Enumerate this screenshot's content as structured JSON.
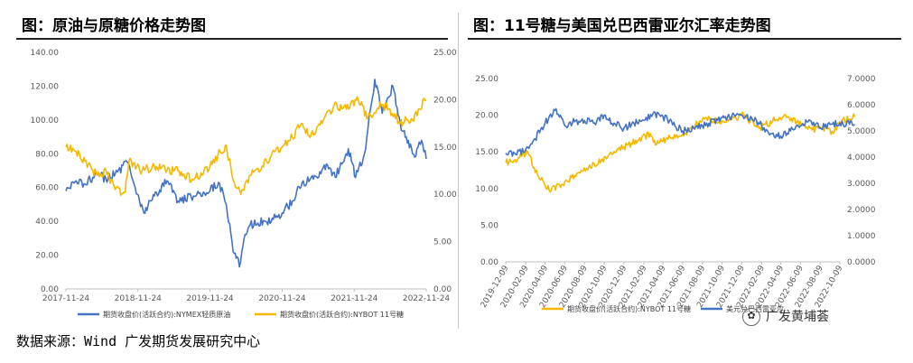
{
  "header_left": "图：原油与原糖价格走势图",
  "header_right": "图：11号糖与美国兑巴西雷亚尔汇率走势图",
  "source": "数据来源：Wind 广发期货发展研究中心",
  "watermark": "广发黄埔荟",
  "colors": {
    "blue": "#4472c4",
    "gold": "#f5b800"
  },
  "chart_data": [
    {
      "type": "line",
      "title": "",
      "x_ticks": [
        "2017-11-24",
        "2018-11-24",
        "2019-11-24",
        "2020-11-24",
        "2021-11-24",
        "2022-11-24"
      ],
      "y_left": {
        "ticks": [
          "0.00",
          "20.00",
          "40.00",
          "60.00",
          "80.00",
          "100.00",
          "120.00",
          "140.00"
        ],
        "range": [
          0,
          140
        ]
      },
      "y_right": {
        "ticks": [
          "0.00",
          "5.00",
          "10.00",
          "15.00",
          "20.00",
          "25.00"
        ],
        "range": [
          0,
          25
        ]
      },
      "series": [
        {
          "name": "期货收盘价(活跃合约):NYMEX轻质原油",
          "axis": "left",
          "x": [
            "2017-11-24",
            "2018-01-15",
            "2018-03-01",
            "2018-05-01",
            "2018-06-15",
            "2018-08-01",
            "2018-10-01",
            "2018-11-10",
            "2018-12-24",
            "2019-02-15",
            "2019-04-20",
            "2019-06-15",
            "2019-09-01",
            "2019-11-24",
            "2020-01-06",
            "2020-02-15",
            "2020-03-20",
            "2020-04-10",
            "2020-04-21",
            "2020-05-15",
            "2020-06-15",
            "2020-09-01",
            "2020-11-24",
            "2021-01-15",
            "2021-03-05",
            "2021-05-01",
            "2021-07-06",
            "2021-08-20",
            "2021-10-25",
            "2021-12-01",
            "2022-01-15",
            "2022-03-08",
            "2022-04-15",
            "2022-06-08",
            "2022-07-15",
            "2022-08-15",
            "2022-09-26",
            "2022-10-31",
            "2022-11-24"
          ],
          "values": [
            58,
            64,
            62,
            68,
            65,
            68,
            75,
            60,
            45,
            55,
            64,
            52,
            55,
            58,
            63,
            50,
            22,
            19,
            13,
            30,
            38,
            40,
            45,
            52,
            63,
            65,
            74,
            66,
            83,
            66,
            80,
            124,
            104,
            120,
            98,
            90,
            78,
            88,
            77
          ]
        },
        {
          "name": "期货收盘价(活跃合约):NYBOT 11号糖",
          "axis": "right",
          "x": [
            "2017-11-24",
            "2018-01-15",
            "2018-03-01",
            "2018-05-01",
            "2018-06-15",
            "2018-08-01",
            "2018-09-20",
            "2018-10-10",
            "2018-12-15",
            "2019-02-15",
            "2019-04-20",
            "2019-06-15",
            "2019-09-01",
            "2019-11-24",
            "2020-01-15",
            "2020-02-15",
            "2020-03-20",
            "2020-04-28",
            "2020-06-15",
            "2020-08-15",
            "2020-10-15",
            "2020-11-24",
            "2021-01-15",
            "2021-03-01",
            "2021-04-15",
            "2021-06-15",
            "2021-08-15",
            "2021-10-15",
            "2021-12-15",
            "2022-02-01",
            "2022-04-15",
            "2022-06-15",
            "2022-07-15",
            "2022-08-15",
            "2022-09-15",
            "2022-10-15",
            "2022-11-24"
          ],
          "values": [
            15.0,
            14.5,
            13.5,
            12.0,
            12.5,
            10.5,
            10.2,
            13.5,
            12.5,
            13.0,
            12.5,
            12.5,
            11.5,
            13.0,
            14.5,
            15.2,
            11.5,
            10.0,
            12.0,
            13.0,
            14.5,
            15.0,
            16.0,
            17.5,
            16.0,
            17.5,
            19.5,
            19.0,
            20.0,
            18.0,
            19.5,
            18.5,
            17.5,
            18.0,
            17.8,
            19.0,
            20.0
          ]
        }
      ]
    },
    {
      "type": "line",
      "title": "",
      "x_ticks": [
        "2019-12-09",
        "2020-02-09",
        "2020-04-09",
        "2020-06-09",
        "2020-08-09",
        "2020-10-09",
        "2020-12-09",
        "2021-02-09",
        "2021-04-09",
        "2021-06-09",
        "2021-08-09",
        "2021-10-09",
        "2021-12-09",
        "2022-02-09",
        "2022-04-09",
        "2022-06-09",
        "2022-08-09",
        "2022-10-09"
      ],
      "y_left": {
        "ticks": [
          "0.00",
          "5.00",
          "10.00",
          "15.00",
          "20.00",
          "25.00"
        ],
        "range": [
          0,
          25
        ]
      },
      "y_right": {
        "ticks": [
          "0.0000",
          "1.0000",
          "2.0000",
          "3.0000",
          "4.0000",
          "5.0000",
          "6.0000",
          "7.0000"
        ],
        "range": [
          0,
          7
        ]
      },
      "series": [
        {
          "name": "期货收盘价(活跃合约):NYBOT 11号糖",
          "axis": "left",
          "x": [
            "2019-12-09",
            "2020-01-20",
            "2020-02-15",
            "2020-03-20",
            "2020-04-28",
            "2020-05-30",
            "2020-06-30",
            "2020-08-15",
            "2020-09-30",
            "2020-11-15",
            "2021-01-01",
            "2021-03-01",
            "2021-03-20",
            "2021-05-01",
            "2021-06-15",
            "2021-08-15",
            "2021-10-15",
            "2021-12-15",
            "2022-02-01",
            "2022-03-15",
            "2022-05-01",
            "2022-06-15",
            "2022-07-15",
            "2022-08-15",
            "2022-09-15",
            "2022-10-15",
            "2022-11-24"
          ],
          "values": [
            13.5,
            14.2,
            15.0,
            11.5,
            9.8,
            10.5,
            11.5,
            12.8,
            13.8,
            15.0,
            16.2,
            17.5,
            16.0,
            17.0,
            17.5,
            19.5,
            19.0,
            20.0,
            18.2,
            19.2,
            19.8,
            18.8,
            18.0,
            18.3,
            17.8,
            19.2,
            19.8
          ]
        },
        {
          "name": "美元兑巴西雷亚尔",
          "axis": "right",
          "x": [
            "2019-12-09",
            "2020-01-09",
            "2020-02-09",
            "2020-03-09",
            "2020-04-09",
            "2020-05-13",
            "2020-06-09",
            "2020-07-09",
            "2020-08-09",
            "2020-09-09",
            "2020-10-09",
            "2020-11-09",
            "2020-12-09",
            "2021-01-09",
            "2021-02-09",
            "2021-03-09",
            "2021-04-09",
            "2021-06-09",
            "2021-08-09",
            "2021-10-09",
            "2021-12-09",
            "2022-01-09",
            "2022-02-09",
            "2022-03-09",
            "2022-04-09",
            "2022-05-09",
            "2022-06-09",
            "2022-07-09",
            "2022-08-09",
            "2022-09-09",
            "2022-10-09",
            "2022-11-24"
          ],
          "values": [
            4.15,
            4.1,
            4.3,
            4.7,
            5.3,
            5.85,
            5.2,
            5.35,
            5.4,
            5.3,
            5.6,
            5.3,
            5.1,
            5.3,
            5.4,
            5.65,
            5.55,
            5.0,
            5.2,
            5.5,
            5.6,
            5.5,
            5.2,
            4.9,
            4.8,
            5.0,
            5.2,
            5.4,
            5.1,
            5.25,
            5.3,
            5.25
          ]
        }
      ]
    }
  ]
}
